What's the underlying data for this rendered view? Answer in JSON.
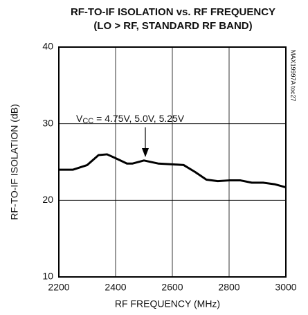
{
  "chart_data": {
    "type": "line",
    "title": [
      "RF-TO-IF ISOLATION vs. RF FREQUENCY",
      "(LO > RF, STANDARD RF BAND)"
    ],
    "x_label": "RF FREQUENCY (MHz)",
    "y_label": "RF-TO-IF ISOLATION (dB)",
    "side_label": "MAX19997A toc27",
    "annotation": {
      "prefix": "V",
      "subscript": "CC",
      "text": " = 4.75V, 5.0V, 5.25V"
    },
    "xlim": [
      2200,
      3000
    ],
    "xticks": [
      2200,
      2400,
      2600,
      2800,
      3000
    ],
    "ylim": [
      10,
      40
    ],
    "yticks": [
      10,
      20,
      30,
      40
    ],
    "grid": true,
    "series": [
      {
        "color": "#000000",
        "x": [
          2200,
          2250,
          2300,
          2340,
          2370,
          2400,
          2440,
          2460,
          2500,
          2550,
          2600,
          2640,
          2680,
          2720,
          2760,
          2800,
          2840,
          2880,
          2920,
          2960,
          3000
        ],
        "values": [
          24.0,
          24.0,
          24.6,
          25.9,
          26.0,
          25.5,
          24.8,
          24.8,
          25.2,
          24.8,
          24.7,
          24.6,
          23.7,
          22.7,
          22.5,
          22.6,
          22.6,
          22.3,
          22.3,
          22.1,
          21.7
        ]
      }
    ]
  }
}
